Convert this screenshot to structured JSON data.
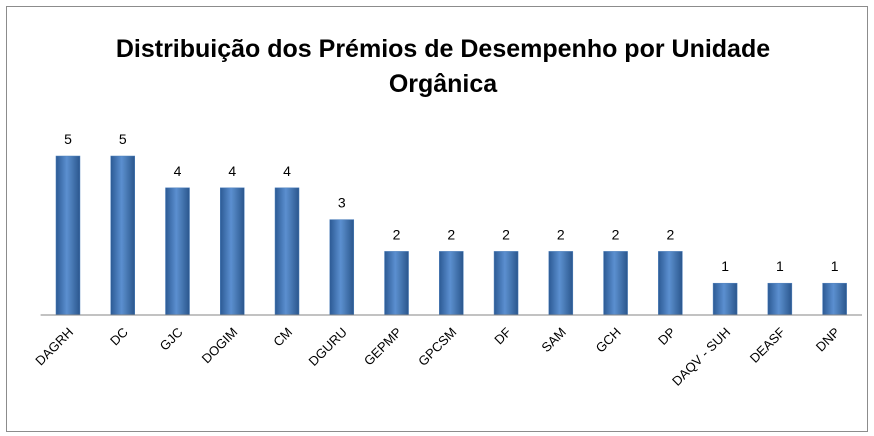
{
  "chart_data": {
    "type": "bar",
    "title": "Distribuição dos Prémios de Desempenho por Unidade Orgânica",
    "categories": [
      "DAGRH",
      "DC",
      "GJC",
      "DOGIM",
      "CM",
      "DGURU",
      "GEPMP",
      "GPCSM",
      "DF",
      "SAM",
      "GCH",
      "DP",
      "DAQV - SUH",
      "DEASF",
      "DNP"
    ],
    "values": [
      5,
      5,
      4,
      4,
      4,
      3,
      2,
      2,
      2,
      2,
      2,
      2,
      1,
      1,
      1
    ],
    "color": "#4f81bd",
    "ylim": [
      0,
      5
    ]
  }
}
